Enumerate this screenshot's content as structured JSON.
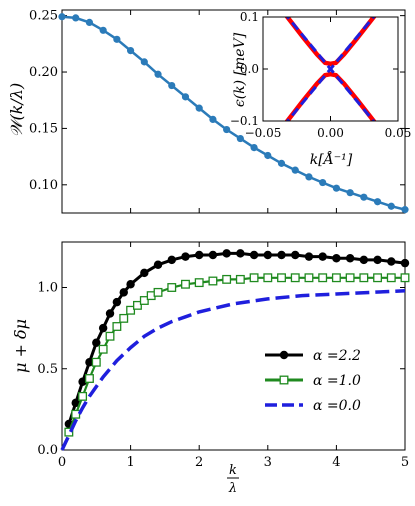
{
  "chart_data": [
    {
      "type": "line",
      "ylabel": "𝒲(k/λ)",
      "xlim": [
        0,
        5
      ],
      "ylim": [
        0.075,
        0.255
      ],
      "yticks": [
        0.1,
        0.15,
        0.2,
        0.25
      ],
      "ytick_labels": [
        "0.10",
        "0.15",
        "0.20",
        "0.25"
      ],
      "xticks": [
        0,
        1,
        2,
        3,
        4,
        5
      ],
      "series": [
        {
          "color": "#2b7bb9",
          "marker": "circle",
          "x": [
            0,
            0.2,
            0.4,
            0.6,
            0.8,
            1.0,
            1.2,
            1.4,
            1.6,
            1.8,
            2.0,
            2.2,
            2.4,
            2.6,
            2.8,
            3.0,
            3.2,
            3.4,
            3.6,
            3.8,
            4.0,
            4.2,
            4.4,
            4.6,
            4.8,
            5.0
          ],
          "values": [
            0.249,
            0.248,
            0.244,
            0.237,
            0.229,
            0.219,
            0.209,
            0.198,
            0.188,
            0.178,
            0.168,
            0.158,
            0.149,
            0.141,
            0.133,
            0.126,
            0.119,
            0.113,
            0.107,
            0.102,
            0.097,
            0.093,
            0.089,
            0.085,
            0.081,
            0.078
          ]
        }
      ]
    },
    {
      "type": "line",
      "inset": true,
      "xlabel": "k[Å⁻¹]",
      "ylabel": "ϵ(k) [meV]",
      "xlim": [
        -0.05,
        0.05
      ],
      "ylim": [
        -0.1,
        0.1
      ],
      "xticks": [
        -0.05,
        0.0,
        0.05
      ],
      "xtick_labels": [
        "−0.05",
        "0.00",
        "0.05"
      ],
      "yticks": [
        -0.1,
        0.0,
        0.1
      ],
      "ytick_labels": [
        "−0.1",
        "0.0",
        "0.1"
      ],
      "series": [
        {
          "color": "#ff0000",
          "style": "solid",
          "x": [
            -0.035,
            -0.02,
            -0.01,
            -0.004,
            0.0,
            0.004,
            0.01,
            0.02,
            0.035
          ],
          "values": [
            0.11,
            0.06,
            0.028,
            0.012,
            0.01,
            0.012,
            0.028,
            0.06,
            0.11
          ]
        },
        {
          "color": "#ff0000",
          "style": "solid",
          "x": [
            -0.035,
            -0.02,
            -0.01,
            -0.004,
            0.0,
            0.004,
            0.01,
            0.02,
            0.035
          ],
          "values": [
            -0.11,
            -0.06,
            -0.028,
            -0.012,
            -0.01,
            -0.012,
            -0.028,
            -0.06,
            -0.11
          ]
        },
        {
          "color": "#1f1fdd",
          "style": "dashed",
          "x": [
            -0.035,
            0.0,
            0.035
          ],
          "values": [
            0.11,
            0.0,
            -0.11
          ]
        },
        {
          "color": "#1f1fdd",
          "style": "dashed",
          "x": [
            -0.035,
            0.0,
            0.035
          ],
          "values": [
            -0.11,
            0.0,
            0.11
          ]
        }
      ]
    },
    {
      "type": "line",
      "xlabel": "k/λ",
      "xlabel_num": "k",
      "xlabel_den": "λ",
      "ylabel": "μ + δμ",
      "xlim": [
        0,
        5
      ],
      "ylim": [
        0,
        1.28
      ],
      "xticks": [
        0,
        1,
        2,
        3,
        4,
        5
      ],
      "xtick_labels": [
        "0",
        "1",
        "2",
        "3",
        "4",
        "5"
      ],
      "yticks": [
        0.0,
        0.5,
        1.0
      ],
      "ytick_labels": [
        "0.0",
        "0.5",
        "1.0"
      ],
      "legend": "center-right",
      "series": [
        {
          "name": "α =2.2",
          "color": "#000000",
          "marker": "filled-circle",
          "style": "solid",
          "x": [
            0.1,
            0.2,
            0.3,
            0.4,
            0.5,
            0.6,
            0.7,
            0.8,
            0.9,
            1.0,
            1.2,
            1.4,
            1.6,
            1.8,
            2.0,
            2.2,
            2.4,
            2.6,
            2.8,
            3.0,
            3.2,
            3.4,
            3.6,
            3.8,
            4.0,
            4.2,
            4.4,
            4.6,
            4.8,
            5.0
          ],
          "values": [
            0.16,
            0.29,
            0.42,
            0.54,
            0.66,
            0.75,
            0.84,
            0.91,
            0.97,
            1.02,
            1.09,
            1.14,
            1.17,
            1.19,
            1.2,
            1.2,
            1.21,
            1.21,
            1.2,
            1.2,
            1.2,
            1.2,
            1.19,
            1.19,
            1.18,
            1.18,
            1.17,
            1.17,
            1.16,
            1.15
          ]
        },
        {
          "name": "α =1.0",
          "color": "#1f8a1f",
          "marker": "open-square",
          "style": "solid",
          "x": [
            0.1,
            0.2,
            0.3,
            0.4,
            0.5,
            0.6,
            0.7,
            0.8,
            0.9,
            1.0,
            1.1,
            1.2,
            1.3,
            1.4,
            1.6,
            1.8,
            2.0,
            2.2,
            2.4,
            2.6,
            2.8,
            3.0,
            3.2,
            3.4,
            3.6,
            3.8,
            4.0,
            4.2,
            4.4,
            4.6,
            4.8,
            5.0
          ],
          "values": [
            0.11,
            0.22,
            0.33,
            0.44,
            0.54,
            0.62,
            0.7,
            0.76,
            0.81,
            0.86,
            0.89,
            0.92,
            0.95,
            0.97,
            1.0,
            1.02,
            1.03,
            1.04,
            1.05,
            1.05,
            1.06,
            1.06,
            1.06,
            1.06,
            1.06,
            1.06,
            1.06,
            1.06,
            1.06,
            1.06,
            1.06,
            1.06
          ]
        },
        {
          "name": "α =0.0",
          "color": "#1f1fdd",
          "style": "dashed",
          "x": [
            0,
            0.1,
            0.2,
            0.3,
            0.4,
            0.5,
            0.6,
            0.8,
            1.0,
            1.2,
            1.4,
            1.6,
            1.8,
            2.0,
            2.5,
            3.0,
            3.5,
            4.0,
            4.5,
            5.0
          ],
          "values": [
            0.0,
            0.09,
            0.18,
            0.26,
            0.33,
            0.39,
            0.45,
            0.55,
            0.63,
            0.7,
            0.75,
            0.79,
            0.82,
            0.85,
            0.9,
            0.93,
            0.95,
            0.96,
            0.97,
            0.98
          ]
        }
      ]
    }
  ]
}
